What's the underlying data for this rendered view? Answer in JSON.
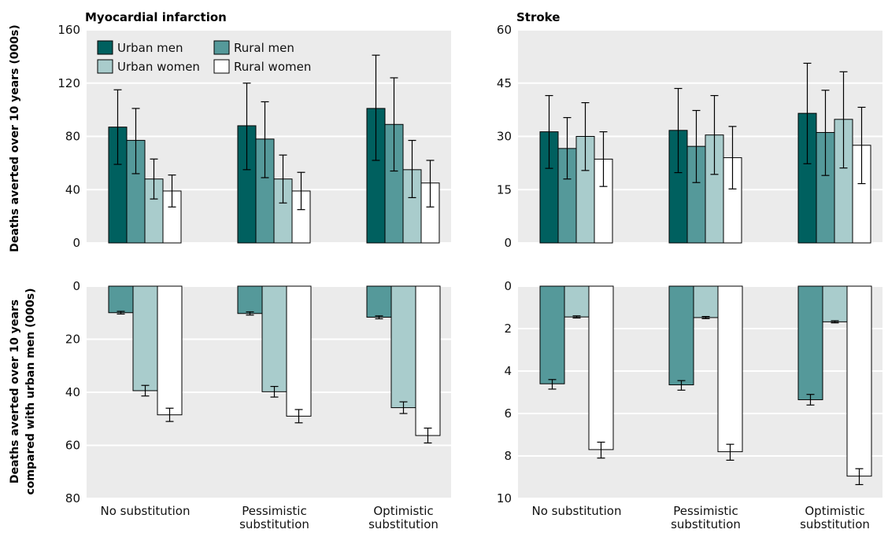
{
  "legend": {
    "items": [
      {
        "name": "Urban men",
        "color": "#00605f"
      },
      {
        "name": "Rural men",
        "color": "#55999a"
      },
      {
        "name": "Urban women",
        "color": "#a9cccc"
      },
      {
        "name": "Rural women",
        "color": "#ffffff"
      }
    ]
  },
  "ylabels": {
    "top": "Deaths averted over 10 years (000s)",
    "bottom_line1": "Deaths averted over 10 years",
    "bottom_line2": "compared with urban men (000s)"
  },
  "chart_data": [
    {
      "id": "mi-top",
      "type": "bar",
      "title": "Myocardial infarction",
      "categories": [
        "No substitution",
        "Pessimistic substitution",
        "Optimistic substitution"
      ],
      "category_lines": [
        [
          "No substitution"
        ],
        [
          "Pessimistic",
          "substitution"
        ],
        [
          "Optimistic",
          "substitution"
        ]
      ],
      "ylim": [
        0,
        160
      ],
      "yticks": [
        0,
        40,
        80,
        120,
        160
      ],
      "inverted": false,
      "grid": true,
      "legend": "top-left",
      "series": [
        {
          "name": "Urban men",
          "color": "#00605f",
          "values": [
            87,
            88,
            101
          ],
          "lower": [
            59,
            55,
            62
          ],
          "upper": [
            115,
            120,
            141
          ]
        },
        {
          "name": "Rural men",
          "color": "#55999a",
          "values": [
            77,
            78,
            89
          ],
          "lower": [
            52,
            49,
            54
          ],
          "upper": [
            101,
            106,
            124
          ]
        },
        {
          "name": "Urban women",
          "color": "#a9cccc",
          "values": [
            48,
            48,
            55
          ],
          "lower": [
            33,
            30,
            34
          ],
          "upper": [
            63,
            66,
            77
          ]
        },
        {
          "name": "Rural women",
          "color": "#ffffff",
          "values": [
            39,
            39,
            45
          ],
          "lower": [
            27,
            25,
            27
          ],
          "upper": [
            51,
            53,
            62
          ]
        }
      ]
    },
    {
      "id": "stroke-top",
      "type": "bar",
      "title": "Stroke",
      "categories": [
        "No substitution",
        "Pessimistic substitution",
        "Optimistic substitution"
      ],
      "category_lines": [
        [
          "No substitution"
        ],
        [
          "Pessimistic",
          "substitution"
        ],
        [
          "Optimistic",
          "substitution"
        ]
      ],
      "ylim": [
        0,
        60
      ],
      "yticks": [
        0,
        15,
        30,
        45,
        60
      ],
      "inverted": false,
      "grid": true,
      "series": [
        {
          "name": "Urban men",
          "color": "#00605f",
          "values": [
            31.3,
            31.7,
            36.5
          ],
          "lower": [
            21,
            19.8,
            22.3
          ],
          "upper": [
            41.5,
            43.5,
            50.6
          ]
        },
        {
          "name": "Rural men",
          "color": "#55999a",
          "values": [
            26.6,
            27.2,
            31.1
          ],
          "lower": [
            18,
            17,
            19
          ],
          "upper": [
            35.3,
            37.3,
            43
          ]
        },
        {
          "name": "Urban women",
          "color": "#a9cccc",
          "values": [
            30,
            30.4,
            34.8
          ],
          "lower": [
            20.4,
            19.3,
            21.1
          ],
          "upper": [
            39.5,
            41.5,
            48.2
          ]
        },
        {
          "name": "Rural women",
          "color": "#ffffff",
          "values": [
            23.6,
            24,
            27.5
          ],
          "lower": [
            15.9,
            15.2,
            16.7
          ],
          "upper": [
            31.3,
            32.8,
            38.2
          ]
        }
      ]
    },
    {
      "id": "mi-bottom",
      "type": "bar",
      "categories": [
        "No substitution",
        "Pessimistic substitution",
        "Optimistic substitution"
      ],
      "ylim": [
        0,
        80
      ],
      "yticks": [
        0,
        20,
        40,
        60,
        80
      ],
      "inverted": true,
      "grid": true,
      "series": [
        {
          "name": "Rural men",
          "color": "#55999a",
          "values": [
            10,
            10.3,
            11.7
          ],
          "lower": [
            9.5,
            9.7,
            11.2
          ],
          "upper": [
            10.5,
            10.9,
            12.3
          ]
        },
        {
          "name": "Urban women",
          "color": "#a9cccc",
          "values": [
            39.4,
            39.8,
            45.8
          ],
          "lower": [
            37.4,
            37.8,
            43.6
          ],
          "upper": [
            41.4,
            41.8,
            48
          ]
        },
        {
          "name": "Rural women",
          "color": "#ffffff",
          "values": [
            48.5,
            49,
            56.3
          ],
          "lower": [
            46,
            46.5,
            53.5
          ],
          "upper": [
            51,
            51.5,
            59.1
          ]
        }
      ]
    },
    {
      "id": "stroke-bottom",
      "type": "bar",
      "categories": [
        "No substitution",
        "Pessimistic substitution",
        "Optimistic substitution"
      ],
      "category_lines": [
        [
          "No substitution"
        ],
        [
          "Pessimistic",
          "substitution"
        ],
        [
          "Optimistic",
          "substitution"
        ]
      ],
      "ylim": [
        0,
        10
      ],
      "yticks": [
        0,
        2,
        4,
        6,
        8,
        10
      ],
      "inverted": true,
      "grid": true,
      "series": [
        {
          "name": "Rural men",
          "color": "#55999a",
          "values": [
            4.6,
            4.65,
            5.35
          ],
          "lower": [
            4.4,
            4.45,
            5.1
          ],
          "upper": [
            4.85,
            4.9,
            5.6
          ]
        },
        {
          "name": "Urban women",
          "color": "#a9cccc",
          "values": [
            1.45,
            1.48,
            1.68
          ],
          "lower": [
            1.4,
            1.43,
            1.63
          ],
          "upper": [
            1.5,
            1.53,
            1.73
          ]
        },
        {
          "name": "Rural women",
          "color": "#ffffff",
          "values": [
            7.7,
            7.8,
            8.95
          ],
          "lower": [
            7.35,
            7.45,
            8.6
          ],
          "upper": [
            8.1,
            8.2,
            9.35
          ]
        }
      ]
    }
  ]
}
